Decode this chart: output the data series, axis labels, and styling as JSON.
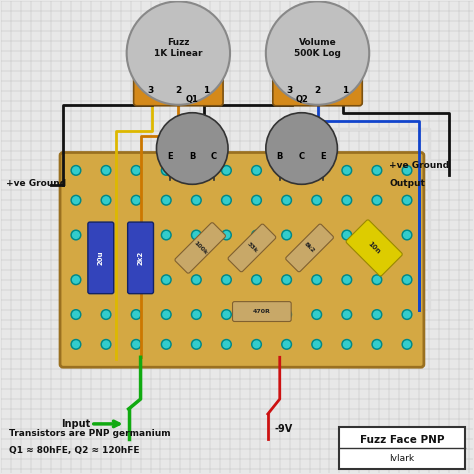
{
  "bg_color": "#e8e8e8",
  "grid_color": "#bbbbbb",
  "board_color": "#d4a843",
  "board_edge": "#9a7020",
  "pot_color": "#c0c0c0",
  "pot_base_color": "#d4891a",
  "pot_edge": "#7a5010",
  "transistor_color": "#909090",
  "transistor_edge": "#333333",
  "title": "Fuzz Face PNP",
  "subtitle": "lvlark",
  "bottom_text1": "Transistors are PNP germanium",
  "bottom_text2": "Q1 ≈ 80hFE, Q2 ≈ 120hFE",
  "fuzz_label": "Fuzz\n1K Linear",
  "volume_label": "Volume\n500K Log",
  "q1_pins": "E B C",
  "q2_pins": "B C E",
  "wire_colors": {
    "black": "#111111",
    "blue": "#1144cc",
    "yellow": "#ddb800",
    "orange": "#cc7700",
    "green": "#11aa11",
    "red": "#cc1111",
    "white": "#dddddd",
    "gray": "#aaaaaa"
  },
  "hole_fill": "#33cccc",
  "hole_edge": "#008888",
  "hole_r": 0.013,
  "cap_blue": "#3344bb",
  "cap_blue_edge": "#112266",
  "cap_yellow": "#ddcc00",
  "cap_yellow_edge": "#998800",
  "res_fill": "#c8a868",
  "res_edge": "#806030"
}
